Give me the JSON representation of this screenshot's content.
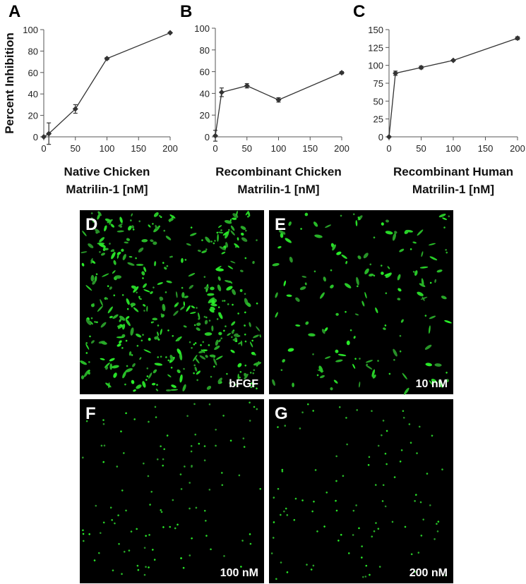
{
  "chart_data": [
    {
      "type": "line",
      "panel_label": "A",
      "ylabel": "Percent Inhibition",
      "xlabel": [
        "Native Chicken",
        "Matrilin-1 [nM]"
      ],
      "x": [
        0,
        8,
        50,
        100,
        200
      ],
      "values": [
        0,
        3,
        26,
        73,
        97
      ],
      "errors": [
        0,
        10,
        4,
        1,
        0.5
      ],
      "color": "#333333",
      "xlim": [
        0,
        200
      ],
      "xticks": [
        0,
        50,
        100,
        150,
        200
      ],
      "ylim": [
        0,
        100
      ],
      "yticks": [
        0,
        20,
        40,
        60,
        80,
        100
      ]
    },
    {
      "type": "line",
      "panel_label": "B",
      "xlabel": [
        "Recombinant Chicken",
        "Matrilin-1 [nM]"
      ],
      "x": [
        0,
        10,
        50,
        100,
        200
      ],
      "values": [
        1,
        41,
        47,
        34,
        59
      ],
      "errors": [
        5,
        4,
        2,
        2,
        1
      ],
      "color": "#333333",
      "xlim": [
        0,
        200
      ],
      "xticks": [
        0,
        50,
        100,
        150,
        200
      ],
      "ylim": [
        0,
        100
      ],
      "yticks": [
        0,
        20,
        40,
        60,
        80,
        100
      ]
    },
    {
      "type": "line",
      "panel_label": "C",
      "xlabel": [
        "Recombinant Human",
        "Matrilin-1 [nM]"
      ],
      "x": [
        0,
        10,
        50,
        100,
        200
      ],
      "values": [
        0,
        89,
        97,
        107,
        138
      ],
      "errors": [
        0,
        3,
        2,
        1,
        2
      ],
      "color": "#333333",
      "xlim": [
        0,
        200
      ],
      "xticks": [
        0,
        50,
        100,
        150,
        200
      ],
      "ylim": [
        0,
        150
      ],
      "yticks": [
        0,
        25,
        50,
        75,
        100,
        125,
        150
      ]
    }
  ],
  "image_panels": [
    {
      "letter": "D",
      "label": "bFGF"
    },
    {
      "letter": "E",
      "label": "10 nM"
    },
    {
      "letter": "F",
      "label": "100 nM"
    },
    {
      "letter": "G",
      "label": "200 nM"
    }
  ]
}
